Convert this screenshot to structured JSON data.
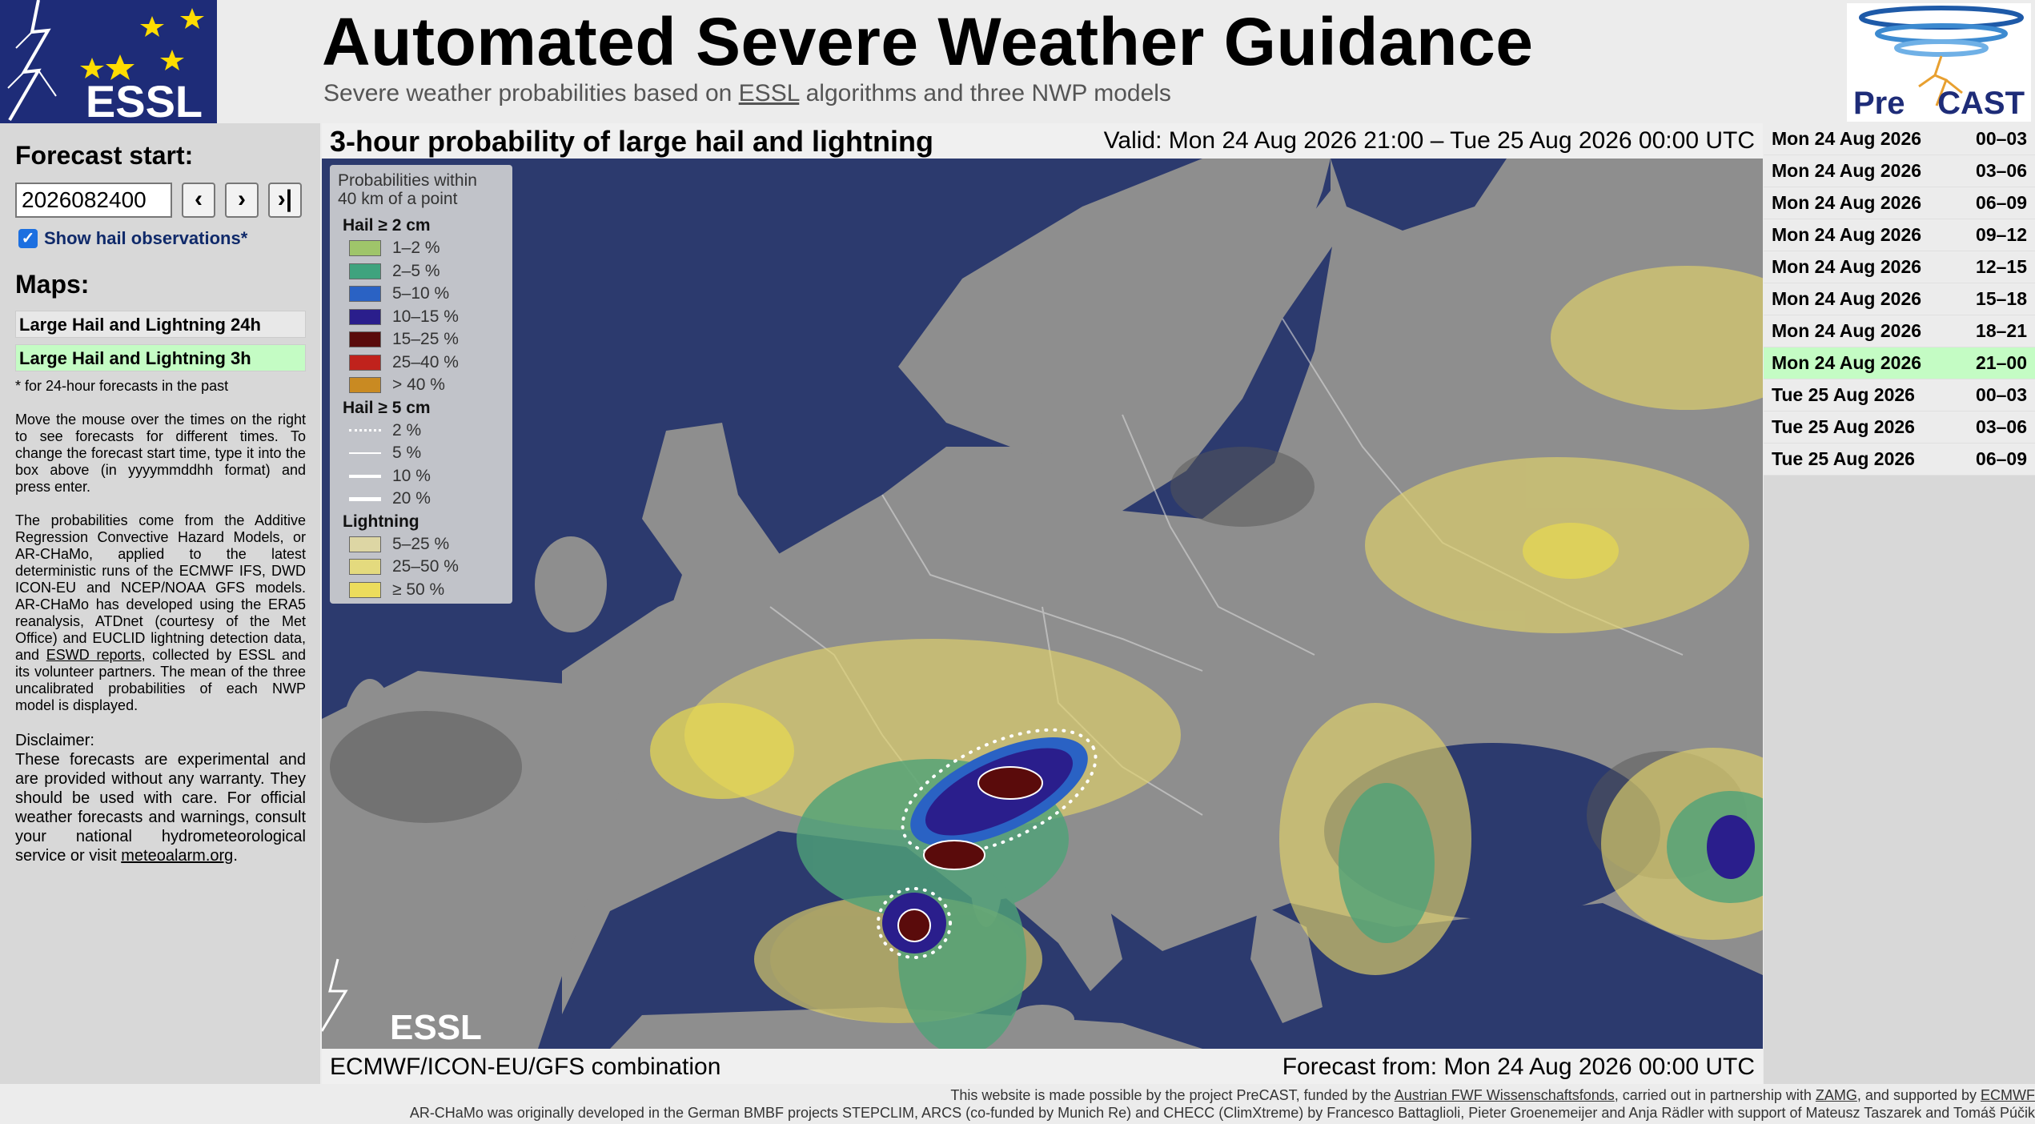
{
  "header": {
    "title": "Automated Severe Weather Guidance",
    "subtitle": [
      "Severe weather probabilities based on ",
      "ESSL",
      " algorithms and three NWP models"
    ],
    "essl_logo": "ESSL",
    "precast_logo": [
      "Pre",
      "CAST"
    ]
  },
  "sidebar": {
    "forecast_start_label": "Forecast start:",
    "forecast_start_value": "2026082400",
    "buttons": [
      "‹",
      "›",
      "›|"
    ],
    "checkbox_label": "Show hail observations*",
    "maps_label": "Maps:",
    "map_links": [
      "Large Hail and Lightning 24h",
      "Large Hail and Lightning 3h"
    ],
    "note": "* for 24-hour forecasts in the past",
    "instructions": "Move the mouse over the times on the right to see forecasts for different times. To change the forecast start time, type it into the box above (in yyyymmddhh format) and press enter.",
    "description": [
      "The probabilities come from the Additive Regression Convective Hazard Models, or AR-CHaMo, applied to the latest deterministic runs of the ECMWF IFS, DWD ICON-EU and NCEP/NOAA GFS models. AR-CHaMo has developed using the ERA5 reanalysis, ATDnet (courtesy of the Met Office) and EUCLID lightning detection data, and ",
      "ESWD reports",
      ", collected by ESSL and its volunteer partners. The mean of the three uncalibrated probabilities of each NWP model is displayed."
    ],
    "disclaimer_title": "Disclaimer:",
    "disclaimer": [
      "These forecasts are experimental and are provided without any warranty. They should be used with care. For official weather forecasts and warnings, consult your national hydrometeorological service or visit ",
      "meteoalarm.org",
      "."
    ]
  },
  "map": {
    "title": "3-hour probability of large hail and lightning",
    "valid": "Valid: Mon 24 Aug 2026 21:00 – Tue 25 Aug 2026 00:00 UTC",
    "model": "ECMWF/ICON-EU/GFS combination",
    "forecast_from": "Forecast from: Mon 24 Aug 2026 00:00 UTC",
    "watermark": "ESSL",
    "legend": {
      "title": [
        "Probabilities within",
        "40 km of a point"
      ],
      "groups": [
        {
          "title": "Hail ≥ 2 cm",
          "items": [
            {
              "label": "1–2 %",
              "color": "#9fc56a"
            },
            {
              "label": "2–5 %",
              "color": "#3fa37e"
            },
            {
              "label": "5–10 %",
              "color": "#2a62c4"
            },
            {
              "label": "10–15 %",
              "color": "#2a1e8c"
            },
            {
              "label": "15–25 %",
              "color": "#5a0b0b"
            },
            {
              "label": "25–40 %",
              "color": "#c0221c"
            },
            {
              "label": "> 40 %",
              "color": "#c98a22"
            }
          ]
        },
        {
          "title": "Hail ≥ 5 cm",
          "items": [
            {
              "label": "2 %",
              "color": "#ffffff"
            },
            {
              "label": "5 %",
              "color": "#ffffff"
            },
            {
              "label": "10 %",
              "color": "#ffffff"
            },
            {
              "label": "20 %",
              "color": "#ffffff"
            }
          ]
        },
        {
          "title": "Lightning",
          "items": [
            {
              "label": "5–25 %",
              "color": "#ddd6a4"
            },
            {
              "label": "25–50 %",
              "color": "#e4da7e"
            },
            {
              "label": "≥ 50 %",
              "color": "#ecdc5c"
            }
          ]
        }
      ]
    }
  },
  "times": [
    [
      "Mon 24 Aug 2026",
      "00–03"
    ],
    [
      "Mon 24 Aug 2026",
      "03–06"
    ],
    [
      "Mon 24 Aug 2026",
      "06–09"
    ],
    [
      "Mon 24 Aug 2026",
      "09–12"
    ],
    [
      "Mon 24 Aug 2026",
      "12–15"
    ],
    [
      "Mon 24 Aug 2026",
      "15–18"
    ],
    [
      "Mon 24 Aug 2026",
      "18–21"
    ],
    [
      "Mon 24 Aug 2026",
      "21–00"
    ],
    [
      "Tue 25 Aug 2026",
      "00–03"
    ],
    [
      "Tue 25 Aug 2026",
      "03–06"
    ],
    [
      "Tue 25 Aug 2026",
      "06–09"
    ]
  ],
  "footer": {
    "line1": [
      "This website is made possible by the project PreCAST, funded by the ",
      "Austrian FWF Wissenschaftsfonds",
      ", carried out in partnership with ",
      "ZAMG",
      ", and supported by ",
      "ECMWF"
    ],
    "line2": "AR-CHaMo was originally developed in the German BMBF projects STEPCLIM, ARCS (co-funded by Munich Re) and CHECC (ClimXtreme) by Francesco Battaglioli, Pieter Groenemeijer and Anja Rädler with support of Mateusz Taszarek and Tomáš Púčik"
  }
}
